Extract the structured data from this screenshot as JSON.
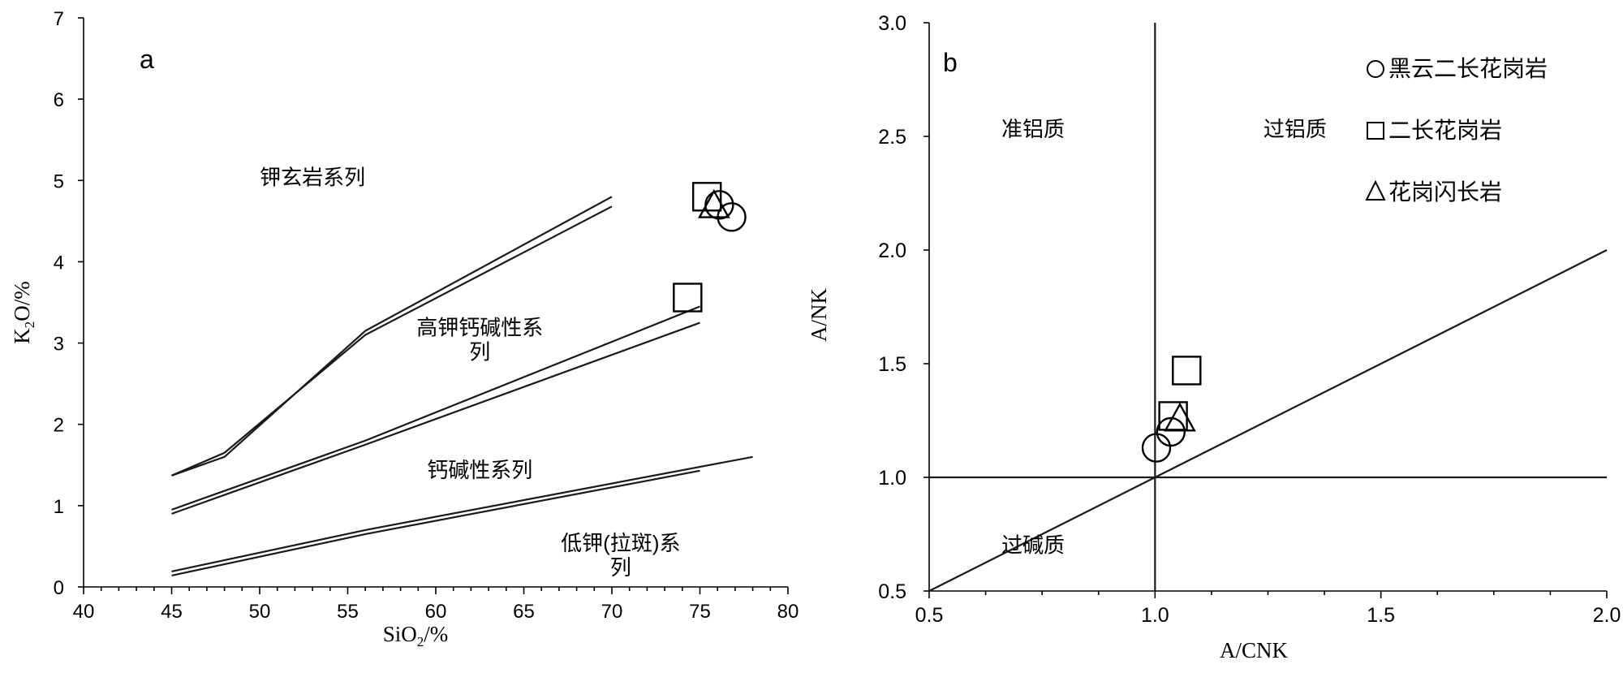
{
  "chart_data": [
    {
      "type": "line",
      "panel_label": "a",
      "xlabel": "SiO",
      "xlabel_sub": "2",
      "xlabel_suffix": "/%",
      "ylabel": "K",
      "ylabel_sub": "2",
      "ylabel_suffix": "O/%",
      "xlim": [
        40,
        80
      ],
      "ylim": [
        0,
        7
      ],
      "xticks": [
        "40",
        "45",
        "50",
        "55",
        "60",
        "65",
        "70",
        "75",
        "80"
      ],
      "yticks": [
        "0",
        "1",
        "2",
        "3",
        "4",
        "5",
        "6",
        "7"
      ],
      "boundaries": [
        {
          "points": [
            [
              45,
              1.37
            ],
            [
              48,
              1.6
            ],
            [
              56,
              3.15
            ],
            [
              70,
              4.8
            ]
          ]
        },
        {
          "points": [
            [
              45,
              1.37
            ],
            [
              48,
              1.65
            ],
            [
              56,
              3.1
            ],
            [
              70,
              4.68
            ]
          ]
        },
        {
          "points": [
            [
              45,
              0.95
            ],
            [
              56,
              1.8
            ],
            [
              75,
              3.45
            ]
          ]
        },
        {
          "points": [
            [
              45,
              0.9
            ],
            [
              56,
              1.75
            ],
            [
              75,
              3.25
            ]
          ]
        },
        {
          "points": [
            [
              45,
              0.19
            ],
            [
              56,
              0.7
            ],
            [
              78,
              1.6
            ]
          ]
        },
        {
          "points": [
            [
              45,
              0.14
            ],
            [
              56,
              0.65
            ],
            [
              75,
              1.43
            ]
          ]
        }
      ],
      "annotations": [
        {
          "text": "钾玄岩系列",
          "x": 53,
          "y": 4.95
        },
        {
          "text": "高钾钙碱性系",
          "x": 62.5,
          "y": 3.1
        },
        {
          "text": "列",
          "x": 62.5,
          "y": 2.8
        },
        {
          "text": "钙碱性系列",
          "x": 62.5,
          "y": 1.35
        },
        {
          "text": "低钾(拉斑)系",
          "x": 70.5,
          "y": 0.45
        },
        {
          "text": "列",
          "x": 70.5,
          "y": 0.15
        }
      ],
      "points": [
        {
          "marker": "square",
          "x": 75.4,
          "y": 4.8
        },
        {
          "marker": "triangle",
          "x": 75.8,
          "y": 4.67
        },
        {
          "marker": "circle",
          "x": 76.1,
          "y": 4.7
        },
        {
          "marker": "circle",
          "x": 76.8,
          "y": 4.55
        },
        {
          "marker": "square",
          "x": 74.3,
          "y": 3.56
        }
      ]
    },
    {
      "type": "scatter",
      "panel_label": "b",
      "xlabel": "A/CNK",
      "ylabel": "A/NK",
      "xlim": [
        0.5,
        2.0
      ],
      "ylim": [
        0.5,
        3.0
      ],
      "xticks": [
        "0.5",
        "1.0",
        "1.5",
        "2.0"
      ],
      "yticks": [
        "0.5",
        "1.0",
        "1.5",
        "2.0",
        "2.5",
        "3.0"
      ],
      "reference_lines": [
        {
          "points": [
            [
              1.0,
              0.5
            ],
            [
              1.0,
              3.0
            ]
          ]
        },
        {
          "points": [
            [
              0.5,
              1.0
            ],
            [
              2.0,
              1.0
            ]
          ]
        },
        {
          "points": [
            [
              0.5,
              0.5
            ],
            [
              2.0,
              2.0
            ]
          ]
        }
      ],
      "annotations": [
        {
          "text": "准铝质",
          "x": 0.73,
          "y": 2.5
        },
        {
          "text": "过铝质",
          "x": 1.31,
          "y": 2.5
        },
        {
          "text": "过碱质",
          "x": 0.73,
          "y": 0.67
        }
      ],
      "legend": [
        {
          "marker": "circle",
          "label": "黑云二长花岗岩"
        },
        {
          "marker": "square",
          "label": "二长花岗岩"
        },
        {
          "marker": "triangle",
          "label": "花岗闪长岩"
        }
      ],
      "legend_position": "top-right",
      "points": [
        {
          "marker": "circle",
          "x": 1.003,
          "y": 1.13
        },
        {
          "marker": "circle",
          "x": 1.035,
          "y": 1.2
        },
        {
          "marker": "square",
          "x": 1.04,
          "y": 1.27
        },
        {
          "marker": "triangle",
          "x": 1.055,
          "y": 1.25
        },
        {
          "marker": "square",
          "x": 1.07,
          "y": 1.47
        }
      ]
    }
  ]
}
